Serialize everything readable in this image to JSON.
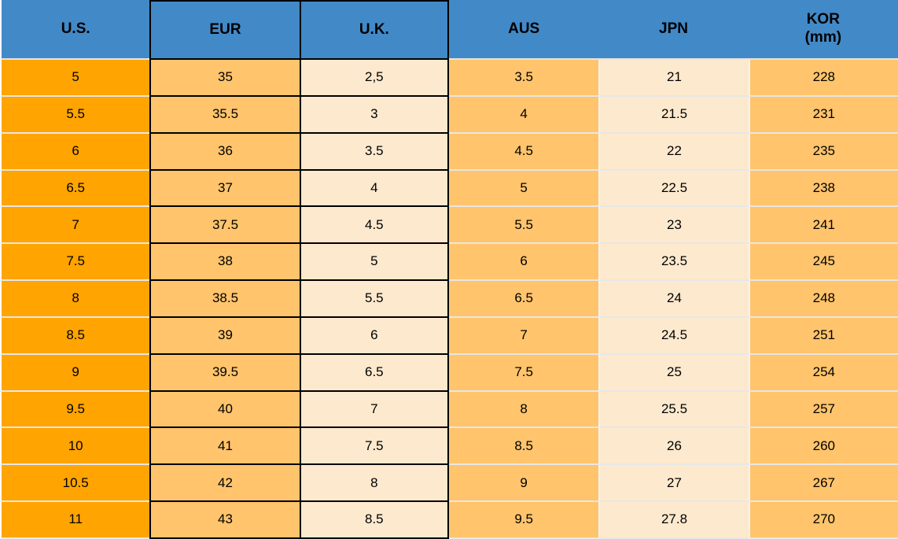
{
  "chart_data": {
    "type": "table",
    "columns": [
      {
        "key": "us",
        "label": "U.S."
      },
      {
        "key": "eur",
        "label": "EUR"
      },
      {
        "key": "uk",
        "label": "U.K."
      },
      {
        "key": "aus",
        "label": "AUS"
      },
      {
        "key": "jpn",
        "label": "JPN"
      },
      {
        "key": "kor",
        "label": "KOR",
        "sublabel": "(mm)"
      }
    ],
    "rows": [
      [
        "5",
        "35",
        "2,5",
        "3.5",
        "21",
        "228"
      ],
      [
        "5.5",
        "35.5",
        "3",
        "4",
        "21.5",
        "231"
      ],
      [
        "6",
        "36",
        "3.5",
        "4.5",
        "22",
        "235"
      ],
      [
        "6.5",
        "37",
        "4",
        "5",
        "22.5",
        "238"
      ],
      [
        "7",
        "37.5",
        "4.5",
        "5.5",
        "23",
        "241"
      ],
      [
        "7.5",
        "38",
        "5",
        "6",
        "23.5",
        "245"
      ],
      [
        "8",
        "38.5",
        "5.5",
        "6.5",
        "24",
        "248"
      ],
      [
        "8.5",
        "39",
        "6",
        "7",
        "24.5",
        "251"
      ],
      [
        "9",
        "39.5",
        "6.5",
        "7.5",
        "25",
        "254"
      ],
      [
        "9.5",
        "40",
        "7",
        "8",
        "25.5",
        "257"
      ],
      [
        "10",
        "41",
        "7.5",
        "8.5",
        "26",
        "260"
      ],
      [
        "10.5",
        "42",
        "8",
        "9",
        "27",
        "267"
      ],
      [
        "11",
        "43",
        "8.5",
        "9.5",
        "27.8",
        "270"
      ]
    ]
  },
  "colors": {
    "header_blue": "#4289C7",
    "us_column_orange": "#FFA400",
    "medium_orange": "#FFC46C",
    "cream": "#FDE9CE",
    "border_black": "#000000",
    "row_separator": "#E7E7E7",
    "text": "#000000"
  }
}
